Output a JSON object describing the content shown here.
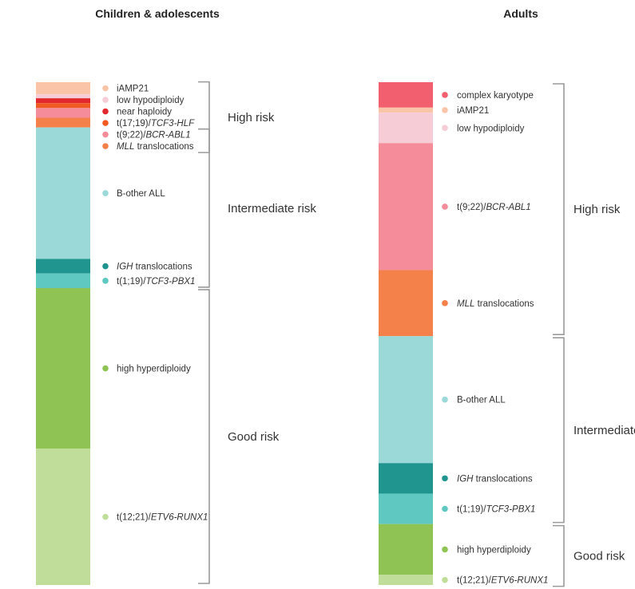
{
  "chart_data": [
    {
      "type": "bar",
      "stacked": true,
      "title": "Children & adolescents",
      "segments": [
        {
          "label": "iAMP21",
          "italic_part": "",
          "value": 2.5,
          "color": "#f9c4a8"
        },
        {
          "label": "low hypodiploidy",
          "italic_part": "",
          "value": 0.8,
          "color": "#f6cdd6"
        },
        {
          "label": "near haploidy",
          "italic_part": "",
          "value": 1.0,
          "color": "#e0282e"
        },
        {
          "label": "t(17;19)/",
          "italic_part": "TCF3-HLF",
          "value": 1.0,
          "color": "#f05a22"
        },
        {
          "label": "t(9;22)/",
          "italic_part": "BCR-ABL1",
          "value": 2.0,
          "color": "#f48c9a"
        },
        {
          "label": "",
          "italic_part": "MLL",
          "suffix": " translocations",
          "value": 2.0,
          "color": "#f4814a"
        },
        {
          "label": "B-other ALL",
          "italic_part": "",
          "value": 27.0,
          "color": "#9bd8d8"
        },
        {
          "label": "",
          "italic_part": "IGH",
          "suffix": " translocations",
          "value": 3.0,
          "color": "#20958f"
        },
        {
          "label": "t(1;19)/",
          "italic_part": "TCF3-PBX1",
          "value": 3.0,
          "color": "#5ec8c1"
        },
        {
          "label": "high hyperdiploidy",
          "italic_part": "",
          "value": 33.0,
          "color": "#8fc454"
        },
        {
          "label": "t(12;21)/",
          "italic_part": "ETV6-RUNX1",
          "value": 28.0,
          "color": "#c0de9a"
        }
      ],
      "groups": [
        {
          "name": "High risk",
          "from": 0,
          "to": 5
        },
        {
          "name": "Intermediate risk",
          "from": 6,
          "to": 8
        },
        {
          "name": "Good risk",
          "from": 9,
          "to": 10
        }
      ]
    },
    {
      "type": "bar",
      "stacked": true,
      "title": "Adults",
      "segments": [
        {
          "label": "complex karyotype",
          "italic_part": "",
          "value": 5.0,
          "color": "#f2606f"
        },
        {
          "label": "iAMP21",
          "italic_part": "",
          "value": 1.0,
          "color": "#f9c4a8"
        },
        {
          "label": "low hypodiploidy",
          "italic_part": "",
          "value": 6.0,
          "color": "#f6cdd6"
        },
        {
          "label": "t(9;22)/",
          "italic_part": "BCR-ABL1",
          "value": 25.0,
          "color": "#f48c9a"
        },
        {
          "label": "",
          "italic_part": "MLL",
          "suffix": " translocations",
          "value": 13.0,
          "color": "#f4814a"
        },
        {
          "label": "B-other ALL",
          "italic_part": "",
          "value": 25.0,
          "color": "#9bd8d8"
        },
        {
          "label": "",
          "italic_part": "IGH",
          "suffix": " translocations",
          "value": 6.0,
          "color": "#20958f"
        },
        {
          "label": "t(1;19)/",
          "italic_part": "TCF3-PBX1",
          "value": 6.0,
          "color": "#5ec8c1"
        },
        {
          "label": "high hyperdiploidy",
          "italic_part": "",
          "value": 10.0,
          "color": "#8fc454"
        },
        {
          "label": "t(12;21)/",
          "italic_part": "ETV6-RUNX1",
          "value": 2.0,
          "color": "#c0de9a"
        }
      ],
      "groups": [
        {
          "name": "High risk",
          "from": 0,
          "to": 4
        },
        {
          "name": "Intermediate risk",
          "from": 5,
          "to": 7
        },
        {
          "name": "Good risk",
          "from": 8,
          "to": 9
        }
      ]
    }
  ]
}
